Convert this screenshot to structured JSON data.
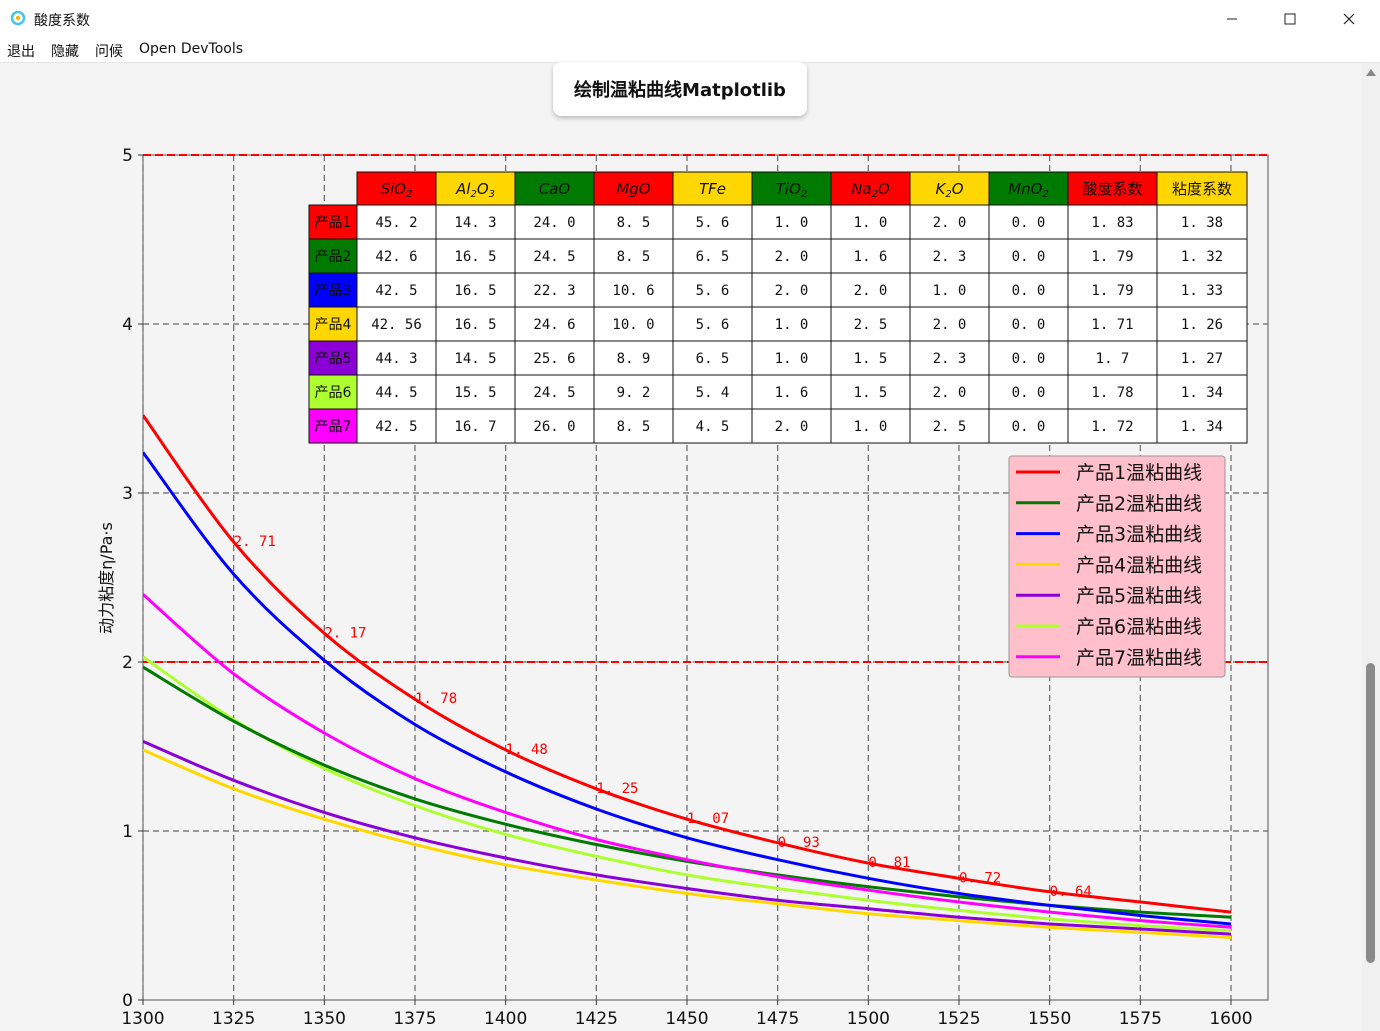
{
  "window": {
    "title": "酸度系数",
    "icon": "app-icon",
    "controls": [
      "minimize-icon",
      "maximize-icon",
      "close-icon"
    ]
  },
  "menu": {
    "items": [
      "退出",
      "隐藏",
      "问候",
      "Open DevTools"
    ]
  },
  "action_button": {
    "label": "绘制温粘曲线Matplotlib"
  },
  "colors": {
    "red": "#ff0000",
    "green": "#007a00",
    "blue": "#0000ff",
    "gold": "#ffd700",
    "purple": "#8b00d6",
    "lime": "#adff2f",
    "magenta": "#ff00ff",
    "legend_bg": "#ffc0cb"
  },
  "table": {
    "headers": [
      "SiO2",
      "Al2O3",
      "CaO",
      "MgO",
      "TFe",
      "TiO2",
      "Na2O",
      "K2O",
      "MnO2",
      "酸度系数",
      "粘度系数"
    ],
    "header_colors": [
      "#ff0000",
      "#ffd700",
      "#007a00",
      "#ff0000",
      "#ffd700",
      "#007a00",
      "#ff0000",
      "#ffd700",
      "#007a00",
      "#ff0000",
      "#ffd700"
    ],
    "rows": [
      {
        "label": "产品1",
        "color": "#ff0000",
        "cells": [
          "45.2",
          "14.3",
          "24.0",
          "8.5",
          "5.6",
          "1.0",
          "1.0",
          "2.0",
          "0.0",
          "1.83",
          "1.38"
        ]
      },
      {
        "label": "产品2",
        "color": "#007a00",
        "cells": [
          "42.6",
          "16.5",
          "24.5",
          "8.5",
          "6.5",
          "2.0",
          "1.6",
          "2.3",
          "0.0",
          "1.79",
          "1.32"
        ]
      },
      {
        "label": "产品3",
        "color": "#0000ff",
        "cells": [
          "42.5",
          "16.5",
          "22.3",
          "10.6",
          "5.6",
          "2.0",
          "2.0",
          "1.0",
          "0.0",
          "1.79",
          "1.33"
        ]
      },
      {
        "label": "产品4",
        "color": "#ffd700",
        "cells": [
          "42.56",
          "16.5",
          "24.6",
          "10.0",
          "5.6",
          "1.0",
          "2.5",
          "2.0",
          "0.0",
          "1.71",
          "1.26"
        ]
      },
      {
        "label": "产品5",
        "color": "#8b00d6",
        "cells": [
          "44.3",
          "14.5",
          "25.6",
          "8.9",
          "6.5",
          "1.0",
          "1.5",
          "2.3",
          "0.0",
          "1.7",
          "1.27"
        ]
      },
      {
        "label": "产品6",
        "color": "#adff2f",
        "cells": [
          "44.5",
          "15.5",
          "24.5",
          "9.2",
          "5.4",
          "1.6",
          "1.5",
          "2.0",
          "0.0",
          "1.78",
          "1.34"
        ]
      },
      {
        "label": "产品7",
        "color": "#ff00ff",
        "cells": [
          "42.5",
          "16.7",
          "26.0",
          "8.5",
          "4.5",
          "2.0",
          "1.0",
          "2.5",
          "0.0",
          "1.72",
          "1.34"
        ]
      }
    ]
  },
  "chart_data": {
    "type": "line",
    "ylabel": "动力粘度η/Pa·s",
    "xlabel": "",
    "xlim": [
      1300,
      1600
    ],
    "ylim": [
      0,
      5
    ],
    "xticks": [
      1300,
      1325,
      1350,
      1375,
      1400,
      1425,
      1450,
      1475,
      1500,
      1525,
      1550,
      1575,
      1600
    ],
    "yticks": [
      0,
      1,
      2,
      3,
      4,
      5
    ],
    "grid": true,
    "reference_lines": [
      2,
      5
    ],
    "legend_position": "right",
    "series": [
      {
        "name": "产品1温粘曲线",
        "color": "#ff0000",
        "x": [
          1300,
          1325,
          1350,
          1375,
          1400,
          1425,
          1450,
          1475,
          1500,
          1525,
          1550,
          1575,
          1600
        ],
        "y": [
          3.46,
          2.71,
          2.17,
          1.78,
          1.48,
          1.25,
          1.07,
          0.93,
          0.81,
          0.72,
          0.64,
          0.58,
          0.52
        ],
        "labels": [
          "",
          "2.71",
          "2.17",
          "1.78",
          "1.48",
          "1.25",
          "1.07",
          "0.93",
          "0.81",
          "0.72",
          "0.64",
          "",
          ""
        ]
      },
      {
        "name": "产品2温粘曲线",
        "color": "#007a00",
        "x": [
          1300,
          1325,
          1350,
          1375,
          1400,
          1425,
          1450,
          1475,
          1500,
          1525,
          1550,
          1575,
          1600
        ],
        "y": [
          1.97,
          1.65,
          1.39,
          1.19,
          1.04,
          0.92,
          0.82,
          0.74,
          0.67,
          0.61,
          0.56,
          0.52,
          0.49
        ]
      },
      {
        "name": "产品3温粘曲线",
        "color": "#0000ff",
        "x": [
          1300,
          1325,
          1350,
          1375,
          1400,
          1425,
          1450,
          1475,
          1500,
          1525,
          1550,
          1575,
          1600
        ],
        "y": [
          3.24,
          2.52,
          2.01,
          1.63,
          1.35,
          1.13,
          0.96,
          0.83,
          0.72,
          0.63,
          0.56,
          0.5,
          0.45
        ]
      },
      {
        "name": "产品4温粘曲线",
        "color": "#ffd700",
        "x": [
          1300,
          1325,
          1350,
          1375,
          1400,
          1425,
          1450,
          1475,
          1500,
          1525,
          1550,
          1575,
          1600
        ],
        "y": [
          1.48,
          1.25,
          1.07,
          0.92,
          0.8,
          0.71,
          0.63,
          0.57,
          0.51,
          0.47,
          0.43,
          0.4,
          0.37
        ]
      },
      {
        "name": "产品5温粘曲线",
        "color": "#8b00d6",
        "x": [
          1300,
          1325,
          1350,
          1375,
          1400,
          1425,
          1450,
          1475,
          1500,
          1525,
          1550,
          1575,
          1600
        ],
        "y": [
          1.53,
          1.3,
          1.11,
          0.96,
          0.84,
          0.74,
          0.66,
          0.59,
          0.54,
          0.49,
          0.45,
          0.42,
          0.39
        ]
      },
      {
        "name": "产品6温粘曲线",
        "color": "#adff2f",
        "x": [
          1300,
          1325,
          1350,
          1375,
          1400,
          1425,
          1450,
          1475,
          1500,
          1525,
          1550,
          1575,
          1600
        ],
        "y": [
          2.03,
          1.66,
          1.37,
          1.15,
          0.98,
          0.85,
          0.74,
          0.66,
          0.59,
          0.53,
          0.48,
          0.44,
          0.41
        ]
      },
      {
        "name": "产品7温粘曲线",
        "color": "#ff00ff",
        "x": [
          1300,
          1325,
          1350,
          1375,
          1400,
          1425,
          1450,
          1475,
          1500,
          1525,
          1550,
          1575,
          1600
        ],
        "y": [
          2.4,
          1.93,
          1.58,
          1.31,
          1.11,
          0.95,
          0.83,
          0.73,
          0.65,
          0.58,
          0.52,
          0.47,
          0.43
        ]
      }
    ]
  }
}
